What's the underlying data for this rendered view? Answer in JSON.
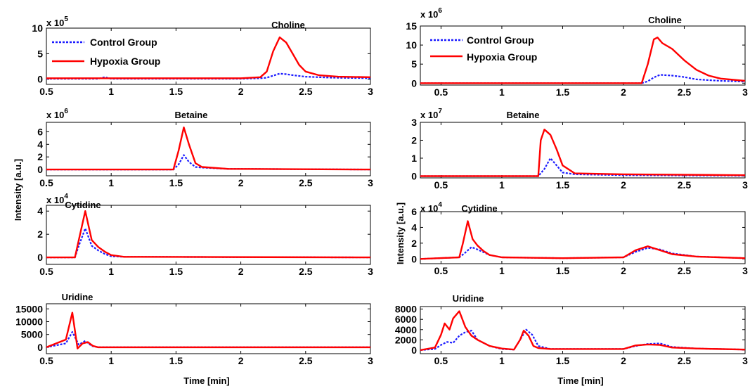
{
  "colors": {
    "control": "#1a1aff",
    "hypoxia": "#ff0000"
  },
  "legend": {
    "control": "Control Group",
    "hypoxia": "Hypoxia Group"
  },
  "chart_data": [
    {
      "type": "line",
      "title": "Choline",
      "exponent_base": "x 10",
      "exponent_power": "5",
      "xlim": [
        0.5,
        3
      ],
      "ylim": [
        -1,
        10
      ],
      "xticks": [
        0.5,
        1,
        1.5,
        2,
        2.5,
        3
      ],
      "xticklabels": [
        "0.5",
        "1",
        "1.5",
        "2",
        "2.5",
        "3"
      ],
      "yticks": [
        0,
        5,
        10
      ],
      "yticklabels": [
        "0",
        "5",
        "10"
      ],
      "series": [
        {
          "name": "Control Group",
          "x": [
            0.5,
            0.9,
            0.95,
            1.0,
            2.0,
            2.15,
            2.2,
            2.25,
            2.3,
            2.35,
            2.4,
            2.5,
            2.7,
            3.0
          ],
          "y": [
            0.1,
            0.1,
            0.4,
            0.1,
            0.1,
            0.2,
            0.3,
            0.7,
            1.1,
            1.0,
            0.8,
            0.5,
            0.3,
            0.2
          ]
        },
        {
          "name": "Hypoxia Group",
          "x": [
            0.5,
            2.0,
            2.15,
            2.2,
            2.25,
            2.3,
            2.35,
            2.4,
            2.45,
            2.5,
            2.6,
            2.75,
            3.0
          ],
          "y": [
            0.2,
            0.2,
            0.4,
            1.5,
            5.5,
            8.2,
            7.2,
            5.0,
            2.8,
            1.5,
            0.8,
            0.5,
            0.4
          ]
        }
      ]
    },
    {
      "type": "line",
      "title": "Choline",
      "exponent_base": "x 10",
      "exponent_power": "6",
      "xlim": [
        0.33,
        3
      ],
      "ylim": [
        -0.5,
        15
      ],
      "xticks": [
        0.5,
        1,
        1.5,
        2,
        2.5,
        3
      ],
      "xticklabels": [
        "0.5",
        "1",
        "1.5",
        "2",
        "2.5",
        "3"
      ],
      "yticks": [
        0,
        5,
        10,
        15
      ],
      "yticklabels": [
        "0",
        "5",
        "10",
        "15"
      ],
      "series": [
        {
          "name": "Control Group",
          "x": [
            0.33,
            2.15,
            2.2,
            2.25,
            2.3,
            2.4,
            2.5,
            2.6,
            2.8,
            3.0
          ],
          "y": [
            0,
            0,
            0.5,
            1.5,
            2.2,
            2.0,
            1.6,
            1.0,
            0.6,
            0.4
          ]
        },
        {
          "name": "Hypoxia Group",
          "x": [
            0.33,
            2.15,
            2.2,
            2.25,
            2.28,
            2.32,
            2.4,
            2.5,
            2.6,
            2.7,
            2.8,
            3.0
          ],
          "y": [
            0,
            0,
            5.0,
            11.5,
            12.0,
            10.5,
            9.0,
            6.0,
            3.5,
            2.0,
            1.2,
            0.6
          ]
        }
      ]
    },
    {
      "type": "line",
      "title": "Betaine",
      "exponent_base": "x 10",
      "exponent_power": "6",
      "xlim": [
        0.5,
        3
      ],
      "ylim": [
        -1,
        7.5
      ],
      "xticks": [
        0.5,
        1,
        1.5,
        2,
        2.5,
        3
      ],
      "xticklabels": [
        "0.5",
        "1",
        "1.5",
        "2",
        "2.5",
        "3"
      ],
      "yticks": [
        0,
        2,
        4,
        6
      ],
      "yticklabels": [
        "0",
        "2",
        "4",
        "6"
      ],
      "series": [
        {
          "name": "Control Group",
          "x": [
            0.5,
            1.48,
            1.52,
            1.56,
            1.6,
            1.65,
            1.7,
            1.9,
            3.0
          ],
          "y": [
            0,
            0,
            0.8,
            2.3,
            1.2,
            0.4,
            0.3,
            0.1,
            0
          ]
        },
        {
          "name": "Hypoxia Group",
          "x": [
            0.5,
            1.48,
            1.52,
            1.56,
            1.6,
            1.65,
            1.7,
            1.9,
            3.0
          ],
          "y": [
            0,
            0,
            3.0,
            6.7,
            4.0,
            1.0,
            0.4,
            0.1,
            0
          ]
        }
      ]
    },
    {
      "type": "line",
      "title": "Betaine",
      "exponent_base": "x 10",
      "exponent_power": "7",
      "xlim": [
        0.33,
        3
      ],
      "ylim": [
        -0.1,
        3
      ],
      "xticks": [
        0.5,
        1,
        1.5,
        2,
        2.5,
        3
      ],
      "xticklabels": [
        "0.5",
        "1",
        "1.5",
        "2",
        "2.5",
        "3"
      ],
      "yticks": [
        0,
        1,
        2,
        3
      ],
      "yticklabels": [
        "0",
        "1",
        "2",
        "3"
      ],
      "series": [
        {
          "name": "Control Group",
          "x": [
            0.33,
            1.3,
            1.35,
            1.4,
            1.45,
            1.5,
            1.6,
            2.0,
            3.0
          ],
          "y": [
            0,
            0,
            0.4,
            1.0,
            0.6,
            0.2,
            0.1,
            0.05,
            0.02
          ]
        },
        {
          "name": "Hypoxia Group",
          "x": [
            0.33,
            1.3,
            1.32,
            1.35,
            1.4,
            1.45,
            1.5,
            1.6,
            2.0,
            3.0
          ],
          "y": [
            0,
            0,
            2.0,
            2.6,
            2.3,
            1.5,
            0.6,
            0.15,
            0.1,
            0.05
          ]
        }
      ]
    },
    {
      "type": "line",
      "title": "Cytidine",
      "exponent_base": "x 10",
      "exponent_power": "4",
      "xlim": [
        0.5,
        3
      ],
      "ylim": [
        -0.6,
        4.5
      ],
      "xticks": [
        0.5,
        1,
        1.5,
        2,
        2.5,
        3
      ],
      "xticklabels": [
        "0.5",
        "1",
        "1.5",
        "2",
        "2.5",
        "3"
      ],
      "yticks": [
        0,
        2,
        4
      ],
      "yticklabels": [
        "0",
        "2",
        "4"
      ],
      "series": [
        {
          "name": "Control Group",
          "x": [
            0.5,
            0.72,
            0.75,
            0.8,
            0.85,
            0.9,
            0.95,
            1.0,
            1.1,
            1.2,
            3.0
          ],
          "y": [
            0,
            0,
            1.0,
            2.5,
            1.0,
            0.6,
            0.3,
            0.1,
            0.05,
            0.05,
            0
          ]
        },
        {
          "name": "Hypoxia Group",
          "x": [
            0.5,
            0.72,
            0.75,
            0.8,
            0.85,
            0.9,
            0.95,
            1.0,
            1.1,
            1.2,
            3.0
          ],
          "y": [
            0,
            0,
            1.5,
            4.0,
            1.5,
            0.9,
            0.5,
            0.2,
            0.05,
            0.05,
            0
          ]
        }
      ]
    },
    {
      "type": "line",
      "title": "Cytidine",
      "exponent_base": "x 10",
      "exponent_power": "4",
      "xlim": [
        0.33,
        3
      ],
      "ylim": [
        -0.6,
        6
      ],
      "xticks": [
        0.5,
        1,
        1.5,
        2,
        2.5,
        3
      ],
      "xticklabels": [
        "0.5",
        "1",
        "1.5",
        "2",
        "2.5",
        "3"
      ],
      "yticks": [
        0,
        2,
        4,
        6
      ],
      "yticklabels": [
        "0",
        "2",
        "4",
        "6"
      ],
      "series": [
        {
          "name": "Control Group",
          "x": [
            0.33,
            0.65,
            0.7,
            0.75,
            0.8,
            0.9,
            1.0,
            1.5,
            2.0,
            2.1,
            2.2,
            2.3,
            2.4,
            2.6,
            3.0
          ],
          "y": [
            0,
            0.2,
            0.8,
            1.5,
            1.2,
            0.5,
            0.2,
            0.1,
            0.2,
            0.9,
            1.4,
            1.2,
            0.7,
            0.3,
            0.1
          ]
        },
        {
          "name": "Hypoxia Group",
          "x": [
            0.33,
            0.65,
            0.68,
            0.72,
            0.76,
            0.8,
            0.85,
            0.9,
            1.0,
            1.5,
            2.0,
            2.1,
            2.2,
            2.3,
            2.4,
            2.6,
            3.0
          ],
          "y": [
            0,
            0.2,
            2.0,
            4.8,
            2.5,
            1.7,
            1.0,
            0.5,
            0.2,
            0.1,
            0.2,
            1.1,
            1.6,
            1.1,
            0.6,
            0.3,
            0.1
          ]
        }
      ]
    },
    {
      "type": "line",
      "title": "Uridine",
      "exponent_base": "",
      "exponent_power": "",
      "xlim": [
        0.5,
        3
      ],
      "ylim": [
        -2500,
        17000
      ],
      "xticks": [
        0.5,
        1,
        1.5,
        2,
        2.5,
        3
      ],
      "xticklabels": [
        "0.5",
        "1",
        "1.5",
        "2",
        "2.5",
        "3"
      ],
      "yticks": [
        0,
        5000,
        10000,
        15000
      ],
      "yticklabels": [
        "0",
        "5000",
        "10000",
        "15000"
      ],
      "series": [
        {
          "name": "Control Group",
          "x": [
            0.5,
            0.65,
            0.7,
            0.75,
            0.8,
            0.85,
            0.9,
            3.0
          ],
          "y": [
            0,
            1500,
            6000,
            1000,
            2500,
            500,
            0,
            0
          ]
        },
        {
          "name": "Hypoxia Group",
          "x": [
            0.5,
            0.65,
            0.7,
            0.74,
            0.78,
            0.82,
            0.86,
            0.9,
            3.0
          ],
          "y": [
            0,
            3000,
            13500,
            -500,
            1500,
            2000,
            500,
            0,
            0
          ]
        }
      ]
    },
    {
      "type": "line",
      "title": "Uridine",
      "exponent_base": "",
      "exponent_power": "",
      "xlim": [
        0.33,
        3
      ],
      "ylim": [
        -700,
        8500
      ],
      "xticks": [
        0.5,
        1,
        1.5,
        2,
        2.5,
        3
      ],
      "xticklabels": [
        "0.5",
        "1",
        "1.5",
        "2",
        "2.5",
        "3"
      ],
      "yticks": [
        0,
        2000,
        4000,
        6000,
        8000
      ],
      "yticklabels": [
        "0",
        "2000",
        "4000",
        "6000",
        "8000"
      ],
      "series": [
        {
          "name": "Control Group",
          "x": [
            0.33,
            0.45,
            0.5,
            0.55,
            0.6,
            0.65,
            0.7,
            0.75,
            0.8,
            0.9,
            1.0,
            1.1,
            1.15,
            1.2,
            1.25,
            1.3,
            1.4,
            2.0,
            2.1,
            2.2,
            2.3,
            2.4,
            2.6,
            3.0
          ],
          "y": [
            0,
            200,
            1000,
            1600,
            1400,
            2800,
            3500,
            3800,
            2000,
            800,
            200,
            100,
            2000,
            4000,
            3000,
            800,
            200,
            200,
            800,
            1200,
            1300,
            600,
            300,
            100
          ]
        },
        {
          "name": "Hypoxia Group",
          "x": [
            0.33,
            0.45,
            0.5,
            0.53,
            0.57,
            0.6,
            0.65,
            0.7,
            0.75,
            0.8,
            0.9,
            1.0,
            1.1,
            1.15,
            1.18,
            1.22,
            1.26,
            1.3,
            1.4,
            2.0,
            2.1,
            2.2,
            2.3,
            2.4,
            2.6,
            3.0
          ],
          "y": [
            0,
            500,
            3000,
            5200,
            4000,
            6200,
            7600,
            4500,
            2800,
            2000,
            800,
            300,
            100,
            2000,
            3800,
            2800,
            800,
            400,
            200,
            200,
            900,
            1100,
            1000,
            500,
            300,
            100
          ]
        }
      ]
    }
  ],
  "axis_labels": {
    "ylabel_left": "Intensity [a.u.]",
    "ylabel_right": "Intensity [a.u.]",
    "xlabel_left": "Time [min]",
    "xlabel_right": "Time [min]"
  }
}
